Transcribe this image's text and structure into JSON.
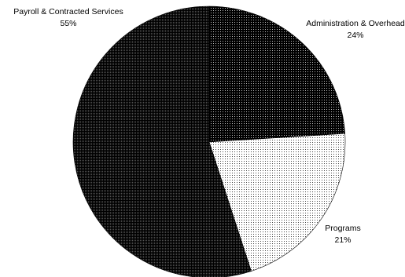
{
  "chart_data": {
    "type": "pie",
    "slices": [
      {
        "label": "Administration & Overhead",
        "percent_label": "24%",
        "value": 24
      },
      {
        "label": "Programs",
        "percent_label": "21%",
        "value": 21
      },
      {
        "label": "Payroll & Contracted Services",
        "percent_label": "55%",
        "value": 55
      }
    ],
    "start": "12 o'clock",
    "direction": "clockwise",
    "legend": "none",
    "colors": [
      "#000000",
      "#ffffff",
      "#1a1a1a"
    ]
  }
}
